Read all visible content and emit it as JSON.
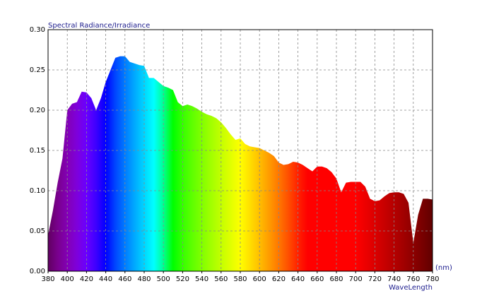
{
  "chart_data": {
    "type": "area",
    "y_label": "Spectral Radiance/Irradiance",
    "x_unit": "(nm)",
    "x_label": "WaveLength",
    "x": [
      380,
      385,
      390,
      395,
      400,
      405,
      410,
      415,
      420,
      425,
      430,
      435,
      440,
      445,
      450,
      455,
      460,
      465,
      470,
      475,
      480,
      485,
      490,
      495,
      500,
      505,
      510,
      515,
      520,
      525,
      530,
      535,
      540,
      545,
      550,
      555,
      560,
      565,
      570,
      575,
      580,
      585,
      590,
      595,
      600,
      605,
      610,
      615,
      620,
      625,
      630,
      635,
      640,
      645,
      650,
      655,
      660,
      665,
      670,
      675,
      680,
      685,
      690,
      695,
      700,
      705,
      710,
      715,
      720,
      725,
      730,
      735,
      740,
      745,
      750,
      755,
      760,
      765,
      770,
      775,
      780
    ],
    "values": [
      0.045,
      0.075,
      0.11,
      0.14,
      0.2,
      0.208,
      0.21,
      0.223,
      0.222,
      0.215,
      0.2,
      0.215,
      0.235,
      0.25,
      0.265,
      0.267,
      0.267,
      0.26,
      0.258,
      0.256,
      0.255,
      0.24,
      0.24,
      0.235,
      0.23,
      0.228,
      0.225,
      0.21,
      0.205,
      0.207,
      0.205,
      0.202,
      0.198,
      0.195,
      0.193,
      0.19,
      0.185,
      0.178,
      0.17,
      0.163,
      0.165,
      0.158,
      0.155,
      0.154,
      0.153,
      0.15,
      0.147,
      0.143,
      0.135,
      0.132,
      0.133,
      0.136,
      0.135,
      0.132,
      0.128,
      0.124,
      0.13,
      0.13,
      0.128,
      0.123,
      0.115,
      0.098,
      0.11,
      0.111,
      0.111,
      0.111,
      0.105,
      0.09,
      0.087,
      0.088,
      0.093,
      0.097,
      0.098,
      0.098,
      0.096,
      0.085,
      0.035,
      0.07,
      0.09,
      0.09,
      0.089
    ],
    "xlim": [
      380,
      780
    ],
    "xticks": [
      380,
      400,
      420,
      440,
      460,
      480,
      500,
      520,
      540,
      560,
      580,
      600,
      620,
      640,
      660,
      680,
      700,
      720,
      740,
      760,
      780
    ],
    "ylim": [
      0,
      0.3
    ],
    "yticks": [
      {
        "value": 0,
        "label": "0.00"
      },
      0.05,
      {
        "value": 0.1,
        "label": "0.10"
      },
      0.15,
      {
        "value": 0.2,
        "label": "0.20"
      },
      0.25,
      {
        "value": 0.3,
        "label": "0.30"
      }
    ],
    "grid": true
  }
}
